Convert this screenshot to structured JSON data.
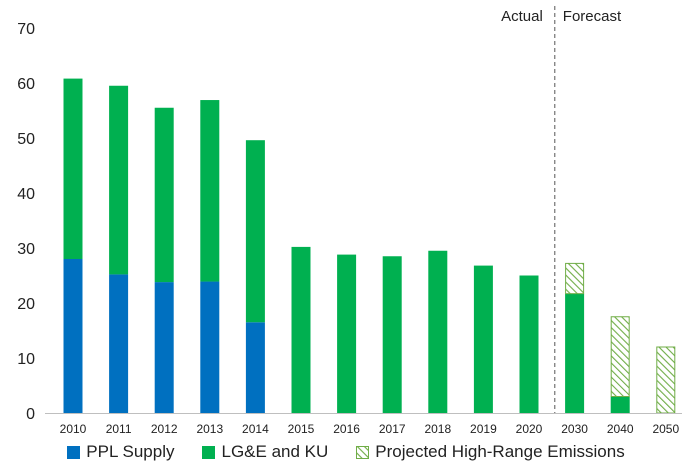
{
  "chart_data": {
    "type": "bar",
    "stacked": true,
    "categories": [
      "2010",
      "2011",
      "2012",
      "2013",
      "2014",
      "2015",
      "2016",
      "2017",
      "2018",
      "2019",
      "2020",
      "2030",
      "2040",
      "2050"
    ],
    "series": [
      {
        "name": "PPL Supply",
        "color": "#0070C0",
        "pattern": "solid",
        "values": [
          28,
          25.2,
          23.8,
          23.9,
          16.5,
          0,
          0,
          0,
          0,
          0,
          0,
          0,
          0,
          0
        ]
      },
      {
        "name": "LG&E and KU",
        "color": "#00B050",
        "pattern": "solid",
        "values": [
          32.8,
          34.3,
          31.7,
          33,
          33.1,
          30.2,
          28.8,
          28.5,
          29.5,
          26.8,
          25,
          21.7,
          3,
          0
        ]
      },
      {
        "name": "Projected High-Range Emissions",
        "color": "#00B050",
        "pattern": "hatched",
        "values": [
          0,
          0,
          0,
          0,
          0,
          0,
          0,
          0,
          0,
          0,
          0,
          5.5,
          14.5,
          12
        ]
      }
    ],
    "ylim": [
      0,
      70
    ],
    "yticks": [
      0,
      10,
      20,
      30,
      40,
      50,
      60,
      70
    ],
    "grid": false,
    "legend_position": "bottom",
    "sections": {
      "actual": "Actual",
      "forecast": "Forecast"
    },
    "divider_after_category": "2020"
  }
}
